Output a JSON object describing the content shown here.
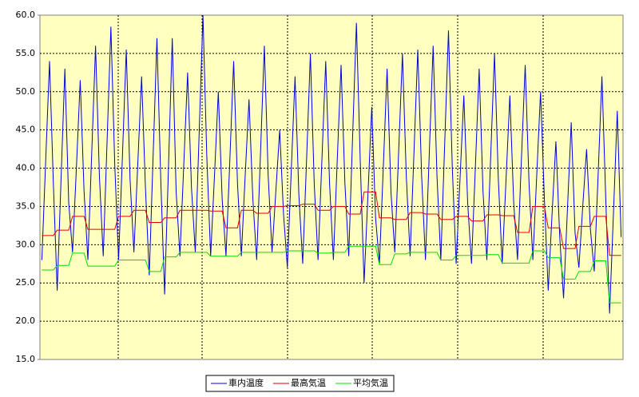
{
  "chart_data": {
    "type": "line",
    "categories": [
      null,
      null,
      null,
      null,
      null,
      null,
      null,
      null,
      null,
      null,
      null,
      null,
      null,
      null,
      null,
      null,
      null,
      null,
      null,
      null,
      null,
      null,
      null,
      null,
      null,
      null,
      null,
      null,
      null,
      null,
      null,
      null,
      null,
      null,
      null,
      null,
      null,
      null,
      null,
      null,
      null,
      null,
      null,
      null,
      null,
      null,
      null,
      null,
      null,
      null,
      null,
      null,
      null,
      null,
      null,
      null,
      null,
      null,
      null,
      null,
      null,
      null,
      null,
      null,
      null,
      null,
      null,
      null,
      null,
      null,
      null,
      null,
      null,
      null,
      null,
      null,
      null,
      null,
      null,
      null,
      null,
      null,
      null,
      null,
      null,
      null,
      null,
      null,
      null,
      null,
      null,
      null,
      null,
      null,
      null,
      null,
      null,
      null,
      null,
      null,
      null,
      null,
      null,
      null,
      null,
      null,
      null,
      null,
      null,
      null,
      null,
      null,
      null,
      null,
      null,
      null,
      null,
      null,
      null,
      null,
      null,
      null,
      null,
      null,
      null,
      null,
      null,
      null,
      null,
      null,
      null,
      null,
      null,
      null,
      null,
      null,
      null,
      null,
      null,
      null,
      null,
      null,
      null,
      null,
      null,
      null,
      null,
      null,
      null,
      null,
      null,
      null
    ],
    "series": [
      {
        "name": "車内温度",
        "color": "#0000e0",
        "values": [
          28,
          41,
          54,
          38,
          24,
          38.5,
          53,
          35.5,
          29,
          40,
          51.5,
          37,
          28,
          42,
          56,
          39,
          28.5,
          43.5,
          58.5,
          40.5,
          28,
          41.5,
          55.5,
          38.5,
          29,
          40.5,
          52,
          37.5,
          26,
          41.5,
          57,
          38.5,
          23.5,
          40,
          57,
          37,
          28.5,
          40.5,
          52.5,
          37.5,
          29,
          44.5,
          60,
          41.5,
          28.5,
          39,
          50,
          36,
          28.5,
          41,
          54,
          38,
          28.5,
          39,
          49,
          36,
          28,
          42,
          56,
          39,
          29,
          37,
          45,
          34,
          27,
          39.5,
          52,
          36.5,
          27.5,
          41,
          55,
          38,
          28,
          41,
          54,
          38,
          28,
          41,
          53.5,
          38,
          28.5,
          44,
          59,
          41,
          25,
          36.5,
          48,
          33.5,
          27.5,
          40,
          53,
          37,
          29,
          42,
          55,
          39,
          28.5,
          42,
          55.5,
          39,
          28,
          42,
          56,
          39,
          28,
          43,
          58,
          40,
          27.5,
          38.5,
          49.5,
          35.5,
          27.5,
          40,
          53,
          37,
          28,
          41.5,
          55,
          38.5,
          27.5,
          38.5,
          49.5,
          35.5,
          28,
          41,
          53.5,
          38,
          28,
          39,
          50,
          36,
          24,
          34,
          43.5,
          31,
          23,
          34.5,
          46,
          31.5,
          27,
          35,
          42.5,
          32,
          26.5,
          39,
          52,
          36,
          21,
          34,
          47.5,
          31
        ]
      },
      {
        "name": "最高気温",
        "color": "#e00000",
        "values": [
          31.2,
          31.2,
          31.2,
          31.2,
          31.9,
          31.9,
          31.9,
          31.9,
          33.7,
          33.7,
          33.7,
          33.7,
          32,
          32,
          32,
          32,
          32,
          32,
          32,
          32,
          33.7,
          33.7,
          33.7,
          33.7,
          34.5,
          34.5,
          34.5,
          34.5,
          32.9,
          32.9,
          32.9,
          32.9,
          33.5,
          33.5,
          33.5,
          33.5,
          34.5,
          34.5,
          34.5,
          34.5,
          34.5,
          34.5,
          34.5,
          34.5,
          34.4,
          34.4,
          34.4,
          34.4,
          32.2,
          32.2,
          32.2,
          32.2,
          34.5,
          34.5,
          34.5,
          34.5,
          34.1,
          34.1,
          34.1,
          34.1,
          35,
          35,
          35,
          35,
          35.1,
          35.1,
          35.1,
          35.1,
          35.3,
          35.3,
          35.3,
          35.3,
          34.5,
          34.5,
          34.5,
          34.5,
          35,
          35,
          35,
          35,
          34,
          34,
          34,
          34,
          36.9,
          36.9,
          36.9,
          36.9,
          33.5,
          33.5,
          33.5,
          33.5,
          33.3,
          33.3,
          33.3,
          33.3,
          34.2,
          34.2,
          34.2,
          34.2,
          34,
          34,
          34,
          34,
          33.3,
          33.3,
          33.3,
          33.3,
          33.7,
          33.7,
          33.7,
          33.7,
          33.1,
          33.1,
          33.1,
          33.1,
          33.9,
          33.9,
          33.9,
          33.9,
          33.8,
          33.8,
          33.8,
          33.8,
          31.6,
          31.6,
          31.6,
          31.6,
          35,
          35,
          35,
          35,
          32.2,
          32.2,
          32.2,
          32.2,
          29.5,
          29.5,
          29.5,
          29.5,
          32.4,
          32.4,
          32.4,
          32.4,
          33.7,
          33.7,
          33.7,
          33.7,
          28.6,
          28.6,
          28.6,
          28.6
        ]
      },
      {
        "name": "平均気温",
        "color": "#00e000",
        "values": [
          26.7,
          26.7,
          26.7,
          26.7,
          27.3,
          27.3,
          27.3,
          27.3,
          28.9,
          28.9,
          28.9,
          28.9,
          27.2,
          27.2,
          27.2,
          27.2,
          27.2,
          27.2,
          27.2,
          27.2,
          28,
          28,
          28,
          28,
          28,
          28,
          28,
          28,
          26.5,
          26.5,
          26.5,
          26.5,
          28.4,
          28.4,
          28.4,
          28.4,
          29,
          29,
          29,
          29,
          29,
          29,
          29,
          29,
          28.5,
          28.5,
          28.5,
          28.5,
          28.5,
          28.5,
          28.5,
          28.5,
          29,
          29,
          29,
          29,
          29,
          29,
          29,
          29,
          29,
          29,
          29,
          29,
          29.2,
          29.2,
          29.2,
          29.2,
          29.2,
          29.2,
          29.2,
          29.2,
          28.9,
          28.9,
          28.9,
          28.9,
          29,
          29,
          29,
          29,
          29.8,
          29.8,
          29.8,
          29.8,
          29.8,
          29.8,
          29.8,
          29.8,
          27.4,
          27.4,
          27.4,
          27.4,
          28.8,
          28.8,
          28.8,
          28.8,
          29,
          29,
          29,
          29,
          29,
          29,
          29,
          29,
          28,
          28,
          28,
          28,
          28.6,
          28.6,
          28.6,
          28.6,
          28.6,
          28.6,
          28.6,
          28.6,
          28.7,
          28.7,
          28.7,
          28.7,
          27.6,
          27.6,
          27.6,
          27.6,
          27.6,
          27.6,
          27.6,
          27.6,
          29.2,
          29.2,
          29.2,
          29.2,
          28.3,
          28.3,
          28.3,
          28.3,
          25.5,
          25.5,
          25.5,
          25.5,
          26.5,
          26.5,
          26.5,
          26.5,
          27.9,
          27.9,
          27.9,
          27.9,
          22.4,
          22.4,
          22.4,
          22.4
        ]
      }
    ],
    "ylim": [
      15,
      60
    ],
    "yticks": [
      {
        "value": 15,
        "label": "15.0"
      },
      {
        "value": 20,
        "label": "20.0"
      },
      {
        "value": 25,
        "label": "25.0"
      },
      {
        "value": 30,
        "label": "30.0"
      },
      {
        "value": 35,
        "label": "35.0"
      },
      {
        "value": 40,
        "label": "40.0"
      },
      {
        "value": 45,
        "label": "45.0"
      },
      {
        "value": 50,
        "label": "50.0"
      },
      {
        "value": 55,
        "label": "55.0"
      },
      {
        "value": 60,
        "label": "60.0"
      }
    ],
    "grid": true,
    "legend": "bottom"
  }
}
